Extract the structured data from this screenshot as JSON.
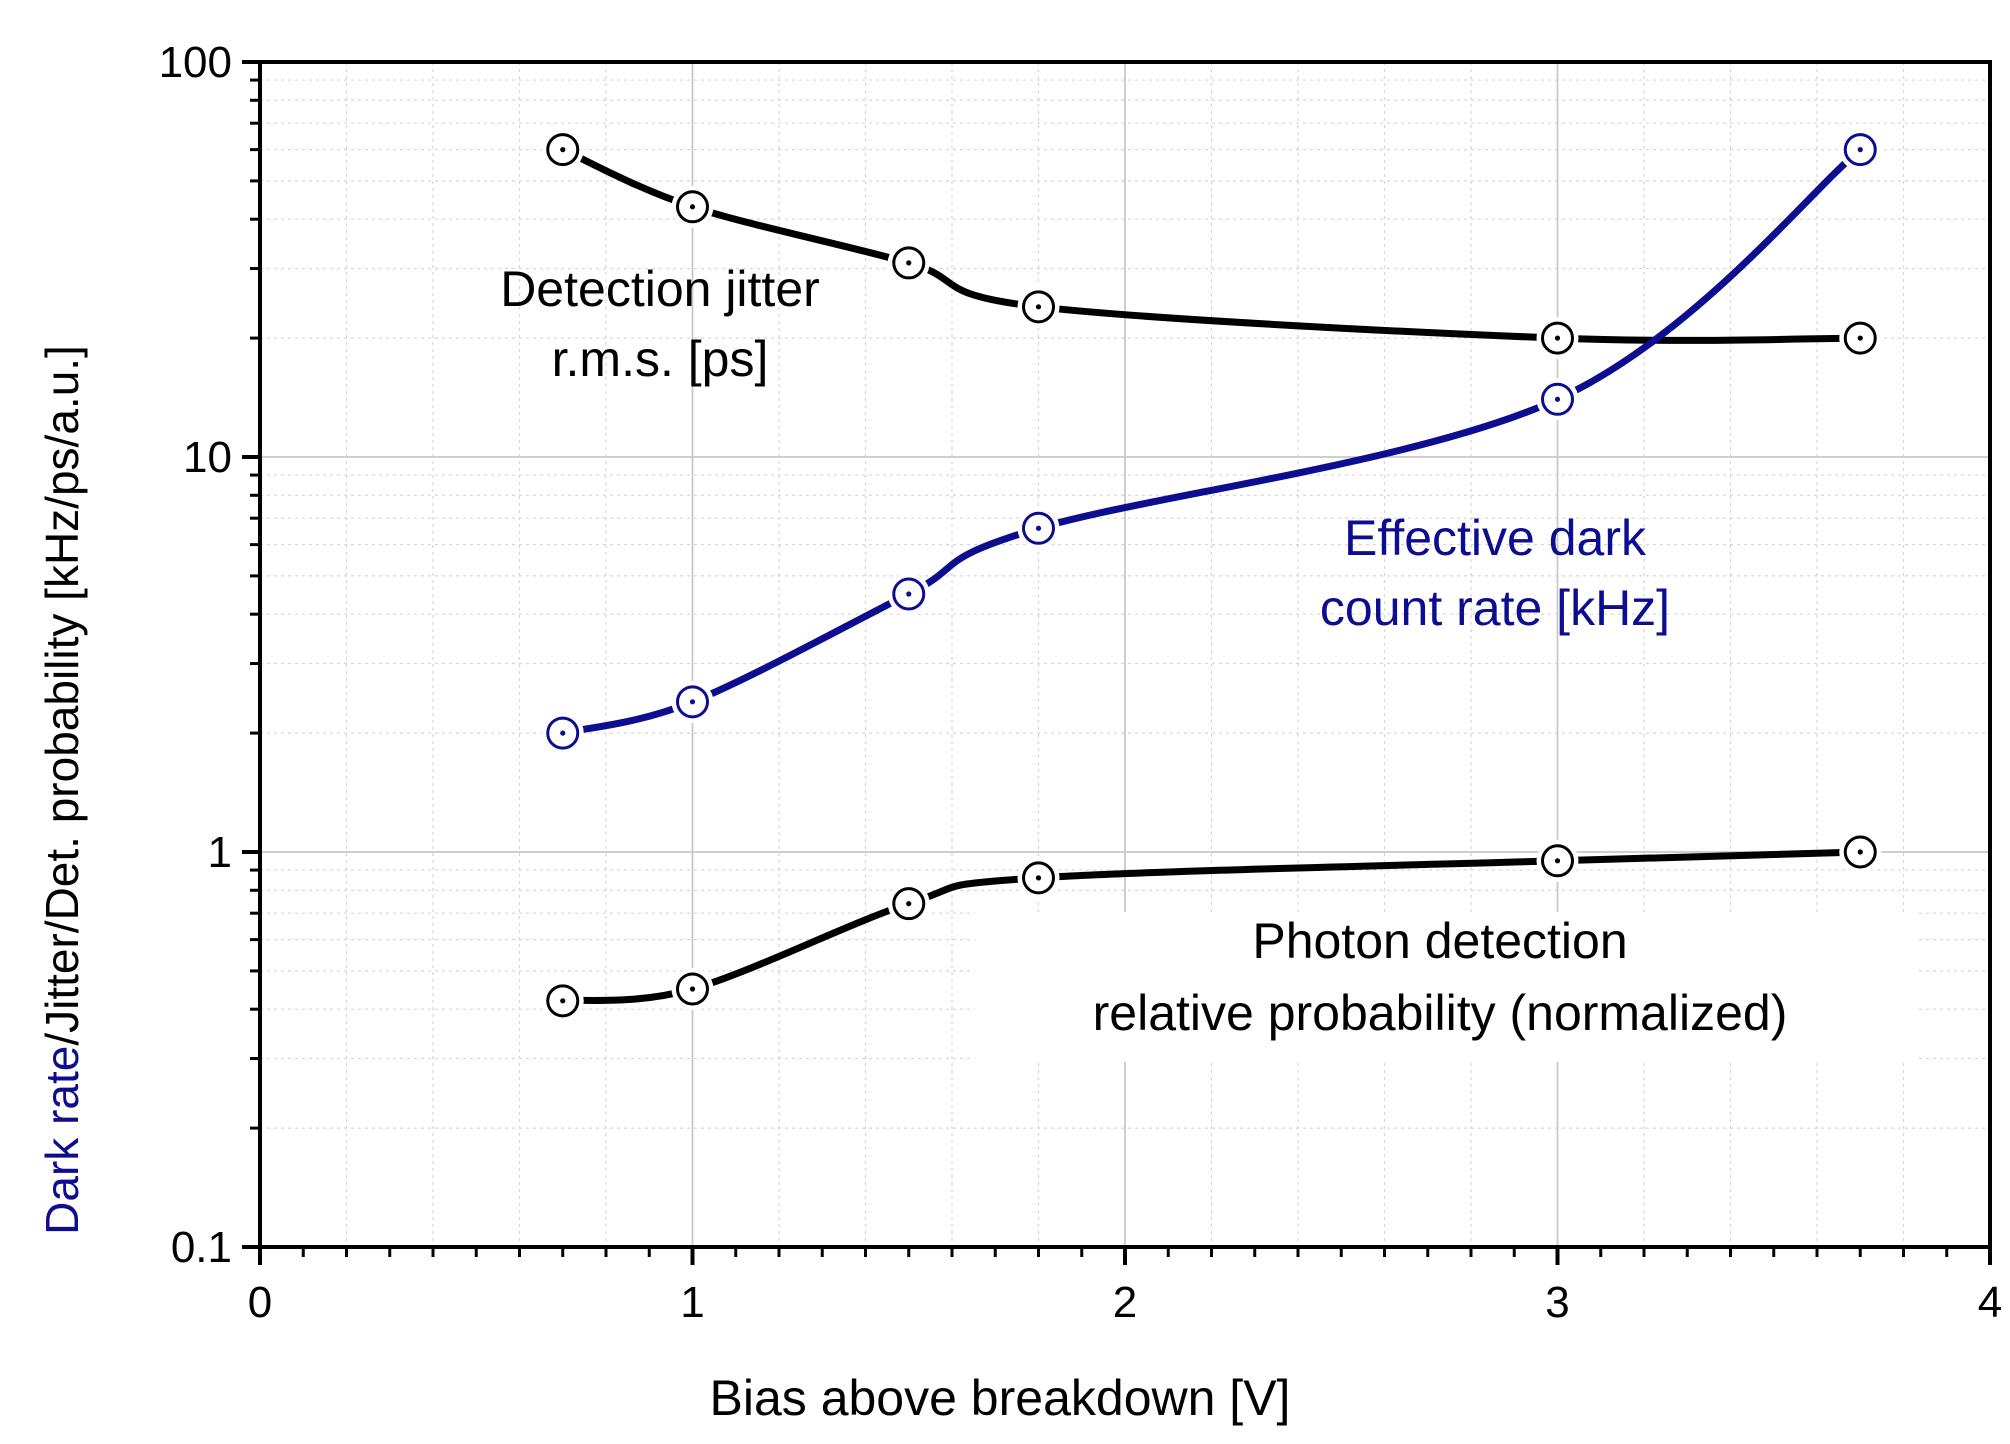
{
  "chart_data": {
    "type": "line",
    "title": "",
    "xlabel": "Bias above breakdown [V]",
    "ylabel": {
      "segments": [
        {
          "text": "Dark rate",
          "color": "#0d0d8f"
        },
        {
          "text": "/Jitter/Det. probability [kHz/ps/a.u.]",
          "color": "#000000"
        }
      ]
    },
    "xlim": [
      0,
      4
    ],
    "ylim": [
      0.1,
      100
    ],
    "yscale": "log",
    "grid": true,
    "x_ticks": [
      "0",
      "1",
      "2",
      "3",
      "4"
    ],
    "y_ticks": [
      "0.1",
      "1",
      "10",
      "100"
    ],
    "series": [
      {
        "name": "Detection jitter r.m.s. [ps]",
        "color": "#000000",
        "x": [
          0.7,
          1.0,
          1.5,
          1.8,
          3.0,
          3.7
        ],
        "values": [
          60,
          43,
          31,
          24,
          20,
          20
        ]
      },
      {
        "name": "Effective dark count rate [kHz]",
        "color": "#0d0d8f",
        "x": [
          0.7,
          1.0,
          1.5,
          1.8,
          3.0,
          3.7
        ],
        "values": [
          2.0,
          2.4,
          4.5,
          6.6,
          14,
          60
        ]
      },
      {
        "name": "Photon detection relative probability (normalized)",
        "color": "#000000",
        "x": [
          0.7,
          1.0,
          1.5,
          1.8,
          3.0,
          3.7
        ],
        "values": [
          0.42,
          0.45,
          0.74,
          0.86,
          0.95,
          1.0
        ]
      }
    ],
    "annotations": [
      {
        "lines": [
          "Detection jitter",
          "r.m.s. [ps]"
        ],
        "color": "#000000",
        "series": 0
      },
      {
        "lines": [
          "Effective dark",
          "count rate [kHz]"
        ],
        "color": "#0d0d8f",
        "series": 1
      },
      {
        "lines": [
          "Photon detection",
          "relative probability (normalized)"
        ],
        "color": "#000000",
        "series": 2
      }
    ]
  }
}
